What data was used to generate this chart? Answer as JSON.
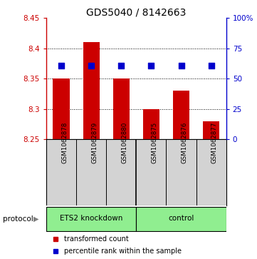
{
  "title": "GDS5040 / 8142663",
  "samples": [
    "GSM1062878",
    "GSM1062879",
    "GSM1062880",
    "GSM1062875",
    "GSM1062876",
    "GSM1062877"
  ],
  "bar_values": [
    8.35,
    8.41,
    8.35,
    8.3,
    8.33,
    8.28
  ],
  "bar_baseline": 8.25,
  "percentile_values": [
    8.372,
    8.372,
    8.372,
    8.372,
    8.372,
    8.372
  ],
  "ylim": [
    8.25,
    8.45
  ],
  "yticks": [
    8.25,
    8.3,
    8.35,
    8.4,
    8.45
  ],
  "ytick_labels": [
    "8.25",
    "8.3",
    "8.35",
    "8.4",
    "8.45"
  ],
  "right_ylim": [
    0,
    100
  ],
  "right_yticks": [
    0,
    25,
    50,
    75,
    100
  ],
  "right_ytick_labels": [
    "0",
    "25",
    "50",
    "75",
    "100%"
  ],
  "bar_color": "#cc0000",
  "dot_color": "#0000cc",
  "left_axis_color": "#cc0000",
  "right_axis_color": "#0000cc",
  "group_labels": [
    "ETS2 knockdown",
    "control"
  ],
  "group_color": "#90ee90",
  "protocol_label": "protocol",
  "legend_bar_label": "transformed count",
  "legend_dot_label": "percentile rank within the sample",
  "background_color": "#ffffff",
  "sample_box_color": "#d3d3d3",
  "bar_width": 0.55,
  "title_fontsize": 10
}
